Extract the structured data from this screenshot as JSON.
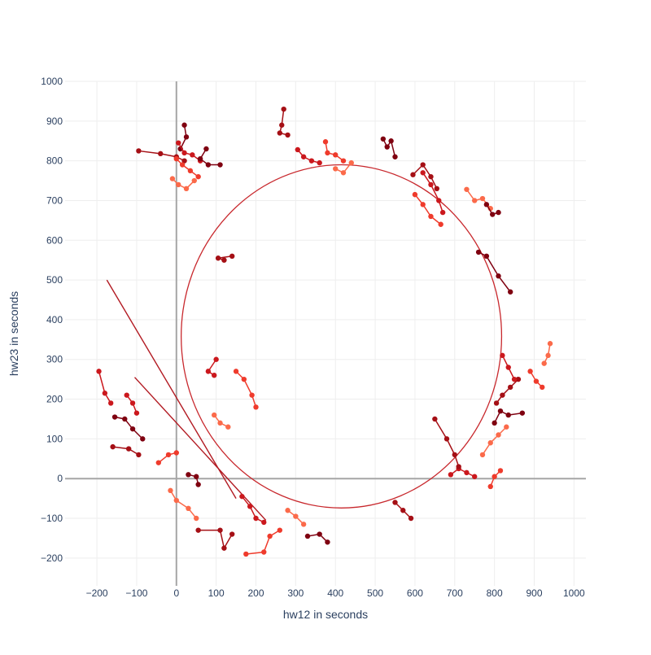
{
  "chart_data": {
    "type": "scatter",
    "title": "",
    "xlabel": "hw12 in seconds",
    "ylabel": "hw23 in seconds",
    "xlim": [
      -280,
      1030
    ],
    "ylim": [
      -270,
      1000
    ],
    "xticks": [
      -200,
      -100,
      0,
      100,
      200,
      300,
      400,
      500,
      600,
      700,
      800,
      900,
      1000
    ],
    "yticks": [
      -200,
      -100,
      0,
      100,
      200,
      300,
      400,
      500,
      600,
      700,
      800,
      900,
      1000
    ],
    "xtick_labels": [
      "−200",
      "−100",
      "0",
      "100",
      "200",
      "300",
      "400",
      "500",
      "600",
      "700",
      "800",
      "900",
      "1000"
    ],
    "ytick_labels": [
      "−200",
      "−100",
      "0",
      "100",
      "200",
      "300",
      "400",
      "500",
      "600",
      "700",
      "800",
      "900",
      "1000"
    ],
    "grid": true,
    "zero_lines": true,
    "colors": {
      "grid": "#eeeeee",
      "zero_line": "#a6a6a6",
      "circle": "#c8282d",
      "series_palette": [
        "#7f0010",
        "#a50f15",
        "#cb181d",
        "#ef3b2c",
        "#fb6a4a"
      ]
    },
    "circle": {
      "cx": 415,
      "cy": 358,
      "rx": 403,
      "ry": 432
    },
    "long_lines": [
      {
        "x": [
          -175,
          150
        ],
        "y": [
          500,
          -50
        ]
      },
      {
        "x": [
          -105,
          225
        ],
        "y": [
          255,
          -105
        ]
      }
    ],
    "series": [
      {
        "values": [
          [
            20,
            890
          ],
          [
            25,
            860
          ],
          [
            10,
            830
          ]
        ]
      },
      {
        "values": [
          [
            -95,
            825
          ],
          [
            -40,
            818
          ],
          [
            0,
            810
          ],
          [
            20,
            800
          ]
        ]
      },
      {
        "values": [
          [
            5,
            845
          ],
          [
            20,
            820
          ],
          [
            40,
            815
          ],
          [
            60,
            800
          ]
        ]
      },
      {
        "values": [
          [
            0,
            805
          ],
          [
            15,
            790
          ],
          [
            35,
            775
          ],
          [
            55,
            760
          ]
        ]
      },
      {
        "values": [
          [
            -10,
            755
          ],
          [
            5,
            740
          ],
          [
            25,
            730
          ],
          [
            45,
            750
          ]
        ]
      },
      {
        "values": [
          [
            75,
            830
          ],
          [
            60,
            805
          ],
          [
            80,
            790
          ],
          [
            110,
            790
          ]
        ]
      },
      {
        "values": [
          [
            270,
            930
          ],
          [
            265,
            890
          ],
          [
            260,
            870
          ],
          [
            280,
            865
          ]
        ]
      },
      {
        "values": [
          [
            305,
            828
          ],
          [
            320,
            810
          ],
          [
            340,
            800
          ],
          [
            360,
            795
          ]
        ]
      },
      {
        "values": [
          [
            375,
            848
          ],
          [
            380,
            820
          ],
          [
            400,
            815
          ],
          [
            420,
            800
          ]
        ]
      },
      {
        "values": [
          [
            400,
            780
          ],
          [
            420,
            770
          ],
          [
            440,
            795
          ]
        ]
      },
      {
        "values": [
          [
            520,
            855
          ],
          [
            530,
            835
          ],
          [
            540,
            850
          ],
          [
            550,
            810
          ]
        ]
      },
      {
        "values": [
          [
            595,
            765
          ],
          [
            620,
            790
          ],
          [
            640,
            760
          ],
          [
            655,
            730
          ]
        ]
      },
      {
        "values": [
          [
            620,
            770
          ],
          [
            640,
            740
          ],
          [
            660,
            700
          ],
          [
            670,
            670
          ]
        ]
      },
      {
        "values": [
          [
            600,
            715
          ],
          [
            620,
            690
          ],
          [
            640,
            660
          ],
          [
            665,
            640
          ]
        ]
      },
      {
        "values": [
          [
            730,
            728
          ],
          [
            750,
            700
          ],
          [
            770,
            705
          ],
          [
            790,
            680
          ]
        ]
      },
      {
        "values": [
          [
            780,
            690
          ],
          [
            795,
            665
          ],
          [
            810,
            670
          ]
        ]
      },
      {
        "values": [
          [
            140,
            560
          ],
          [
            105,
            555
          ],
          [
            120,
            550
          ]
        ]
      },
      {
        "values": [
          [
            100,
            300
          ],
          [
            80,
            270
          ],
          [
            95,
            260
          ]
        ]
      },
      {
        "values": [
          [
            150,
            270
          ],
          [
            170,
            250
          ],
          [
            190,
            210
          ],
          [
            200,
            180
          ]
        ]
      },
      {
        "values": [
          [
            95,
            160
          ],
          [
            110,
            140
          ],
          [
            130,
            130
          ]
        ]
      },
      {
        "values": [
          [
            -155,
            155
          ],
          [
            -130,
            150
          ],
          [
            -110,
            125
          ],
          [
            -85,
            100
          ]
        ]
      },
      {
        "values": [
          [
            -160,
            80
          ],
          [
            -120,
            75
          ],
          [
            -95,
            60
          ]
        ]
      },
      {
        "values": [
          [
            -125,
            210
          ],
          [
            -110,
            190
          ],
          [
            -100,
            165
          ]
        ]
      },
      {
        "values": [
          [
            -45,
            40
          ],
          [
            -20,
            60
          ],
          [
            0,
            65
          ]
        ]
      },
      {
        "values": [
          [
            -15,
            -30
          ],
          [
            0,
            -55
          ],
          [
            30,
            -75
          ],
          [
            50,
            -100
          ]
        ]
      },
      {
        "values": [
          [
            30,
            10
          ],
          [
            50,
            5
          ],
          [
            55,
            -15
          ]
        ]
      },
      {
        "values": [
          [
            55,
            -130
          ],
          [
            110,
            -130
          ],
          [
            120,
            -175
          ],
          [
            140,
            -140
          ]
        ]
      },
      {
        "values": [
          [
            165,
            -45
          ],
          [
            185,
            -70
          ],
          [
            200,
            -100
          ],
          [
            220,
            -110
          ]
        ]
      },
      {
        "values": [
          [
            175,
            -190
          ],
          [
            220,
            -185
          ],
          [
            235,
            -145
          ],
          [
            260,
            -130
          ]
        ]
      },
      {
        "values": [
          [
            280,
            -80
          ],
          [
            300,
            -95
          ],
          [
            320,
            -115
          ]
        ]
      },
      {
        "values": [
          [
            330,
            -145
          ],
          [
            360,
            -140
          ],
          [
            380,
            -160
          ]
        ]
      },
      {
        "values": [
          [
            550,
            -60
          ],
          [
            570,
            -80
          ],
          [
            590,
            -100
          ]
        ]
      },
      {
        "values": [
          [
            690,
            10
          ],
          [
            710,
            25
          ],
          [
            730,
            15
          ],
          [
            750,
            5
          ]
        ]
      },
      {
        "values": [
          [
            790,
            -20
          ],
          [
            800,
            5
          ],
          [
            815,
            20
          ]
        ]
      },
      {
        "values": [
          [
            770,
            60
          ],
          [
            790,
            90
          ],
          [
            810,
            110
          ],
          [
            830,
            130
          ]
        ]
      },
      {
        "values": [
          [
            800,
            140
          ],
          [
            815,
            170
          ],
          [
            835,
            160
          ],
          [
            870,
            165
          ]
        ]
      },
      {
        "values": [
          [
            805,
            190
          ],
          [
            820,
            210
          ],
          [
            840,
            230
          ],
          [
            860,
            250
          ]
        ]
      },
      {
        "values": [
          [
            820,
            310
          ],
          [
            835,
            280
          ],
          [
            850,
            250
          ]
        ]
      },
      {
        "values": [
          [
            890,
            270
          ],
          [
            905,
            245
          ],
          [
            920,
            230
          ]
        ]
      },
      {
        "values": [
          [
            925,
            290
          ],
          [
            935,
            310
          ],
          [
            940,
            340
          ]
        ]
      },
      {
        "values": [
          [
            840,
            470
          ],
          [
            810,
            510
          ],
          [
            780,
            560
          ],
          [
            760,
            570
          ]
        ]
      },
      {
        "values": [
          [
            650,
            150
          ],
          [
            680,
            100
          ],
          [
            700,
            60
          ],
          [
            710,
            30
          ]
        ]
      },
      {
        "values": [
          [
            -195,
            270
          ],
          [
            -180,
            215
          ],
          [
            -165,
            190
          ]
        ]
      }
    ]
  }
}
